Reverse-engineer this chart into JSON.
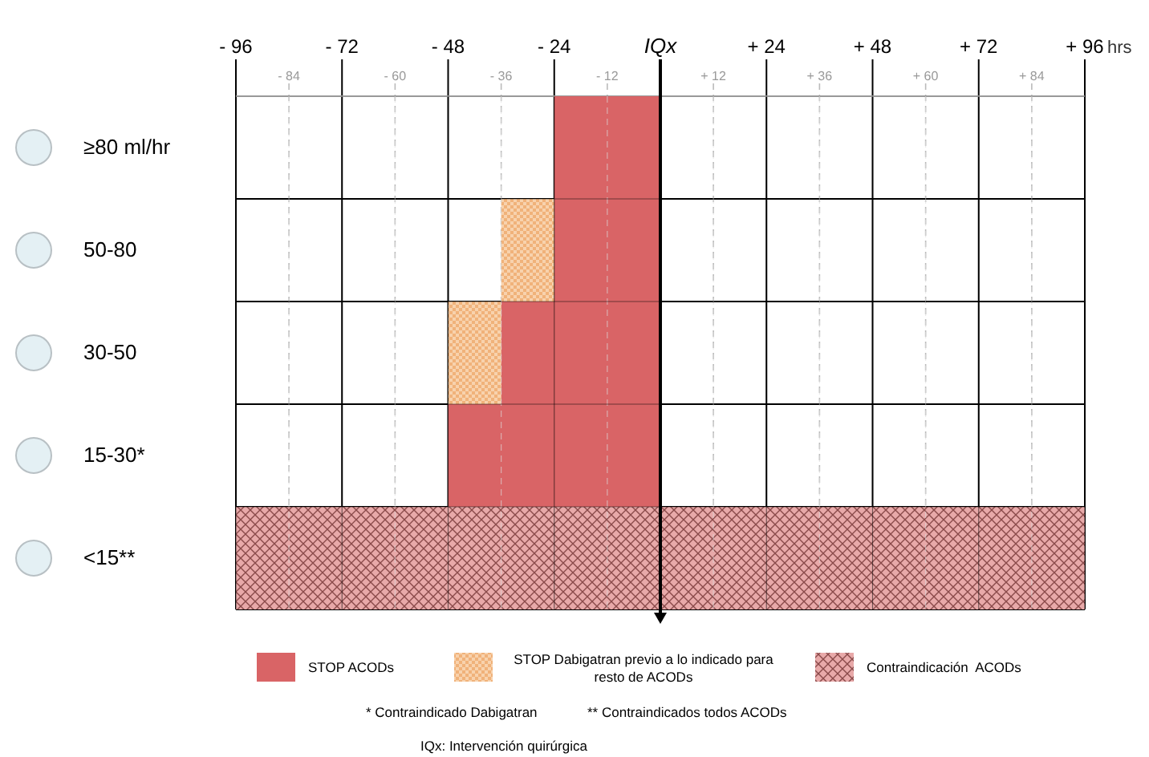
{
  "chart_data": {
    "type": "bar",
    "orientation": "horizontal",
    "xlabel": "hrs",
    "categories": [
      "≥80 ml/hr",
      "50-80",
      "30-50",
      "15-30*",
      "<15**"
    ],
    "series": [
      {
        "name": "STOP ACODs",
        "color": "#d96466",
        "base": [
          -24,
          -24,
          -36,
          -48,
          null
        ],
        "values": [
          24,
          24,
          36,
          48,
          null
        ]
      },
      {
        "name": "STOP Dabigatran previo a lo indicado para resto de ACODs",
        "color": "#f0b27a",
        "base": [
          null,
          -36,
          -48,
          null,
          null
        ],
        "values": [
          null,
          12,
          12,
          null,
          null
        ]
      },
      {
        "name": "Contraindicación  ACODs",
        "color": "#e8a9a9",
        "base": [
          null,
          null,
          null,
          null,
          -96
        ],
        "values": [
          null,
          null,
          null,
          null,
          192
        ]
      }
    ],
    "xlim": [
      -96,
      96
    ],
    "xticks": [
      {
        "value": -96,
        "label": "- 96"
      },
      {
        "value": -72,
        "label": "- 72"
      },
      {
        "value": -48,
        "label": "- 48"
      },
      {
        "value": -24,
        "label": "- 24"
      },
      {
        "value": 0,
        "label": "IQx"
      },
      {
        "value": 24,
        "label": "+ 24"
      },
      {
        "value": 48,
        "label": "+ 48"
      },
      {
        "value": 72,
        "label": "+ 72"
      },
      {
        "value": 96,
        "label": "+ 96"
      }
    ],
    "x2lim": [
      -96,
      96
    ],
    "x2ticks": [
      {
        "value": -84,
        "label": "- 84"
      },
      {
        "value": -60,
        "label": "- 60"
      },
      {
        "value": -36,
        "label": "- 36"
      },
      {
        "value": -12,
        "label": "- 12"
      },
      {
        "value": 12,
        "label": "+ 12"
      },
      {
        "value": 36,
        "label": "+ 36"
      },
      {
        "value": 60,
        "label": "+ 60"
      },
      {
        "value": 84,
        "label": "+ 84"
      }
    ],
    "ref_lines": [
      {
        "axis": "x",
        "value": 0,
        "color": "#000000"
      }
    ],
    "grid": true,
    "legend": "bottom",
    "annotations": [
      "* Contraindicado Dabigatran",
      "** Contraindicados todos ACODs",
      "IQx: Intervención quirúrgica"
    ]
  }
}
